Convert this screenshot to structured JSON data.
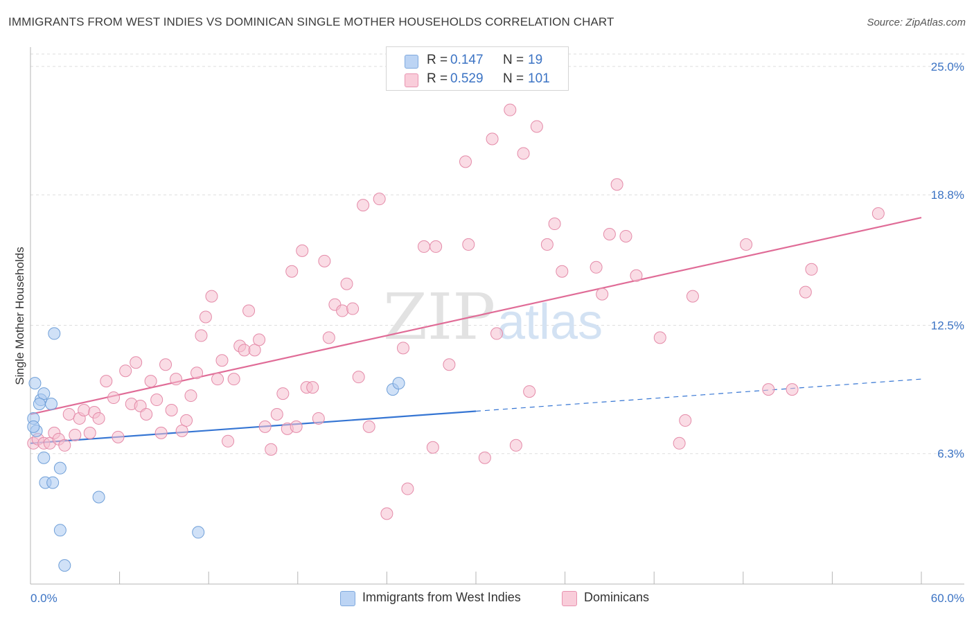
{
  "header": {
    "title": "IMMIGRANTS FROM WEST INDIES VS DOMINICAN SINGLE MOTHER HOUSEHOLDS CORRELATION CHART",
    "source": "Source: ZipAtlas.com"
  },
  "watermark": {
    "zip": "ZIP",
    "atlas": "atlas"
  },
  "legend_top": {
    "rows": [
      {
        "r_label": "R =",
        "r_value": "0.147",
        "n_label": "N =",
        "n_value": "19"
      },
      {
        "r_label": "R =",
        "r_value": "0.529",
        "n_label": "N =",
        "n_value": "101"
      }
    ]
  },
  "legend_bottom": {
    "items": [
      {
        "label": "Immigrants from West Indies"
      },
      {
        "label": "Dominicans"
      }
    ]
  },
  "colors": {
    "blue_fill": "#aac8f0",
    "blue_stroke": "#6f9fd8",
    "blue_line": "#3575d3",
    "pink_fill": "#f6bfd0",
    "pink_stroke": "#e48aa8",
    "pink_line": "#e06c97",
    "axis_label": "#3b73c4",
    "grid": "#dddddd"
  },
  "chart_data": {
    "type": "scatter",
    "title": "IMMIGRANTS FROM WEST INDIES VS DOMINICAN SINGLE MOTHER HOUSEHOLDS CORRELATION CHART",
    "xlabel": "",
    "ylabel": "Single Mother Households",
    "xlim": [
      0,
      60
    ],
    "ylim": [
      0,
      25.6
    ],
    "x_tick_labels": [
      {
        "value": 0,
        "label": "0.0%"
      },
      {
        "value": 60,
        "label": "60.0%"
      }
    ],
    "y_ticks": [
      {
        "value": 6.3,
        "label": "6.3%"
      },
      {
        "value": 12.5,
        "label": "12.5%"
      },
      {
        "value": 18.8,
        "label": "18.8%"
      },
      {
        "value": 25.0,
        "label": "25.0%"
      }
    ],
    "series": [
      {
        "name": "Immigrants from West Indies",
        "color": "#aac8f0",
        "r": 0.147,
        "n": 19,
        "trend": {
          "x0": 0,
          "y0": 6.8,
          "x1": 30,
          "y1": 8.35,
          "dash_to_x": 60,
          "dash_to_y": 9.9
        },
        "points": [
          [
            0.3,
            9.7
          ],
          [
            0.7,
            8.9
          ],
          [
            0.9,
            9.2
          ],
          [
            0.6,
            8.7
          ],
          [
            1.4,
            8.7
          ],
          [
            0.2,
            8.0
          ],
          [
            0.4,
            7.4
          ],
          [
            0.2,
            7.6
          ],
          [
            1.6,
            12.1
          ],
          [
            0.9,
            6.1
          ],
          [
            2.0,
            5.6
          ],
          [
            1.0,
            4.9
          ],
          [
            1.5,
            4.9
          ],
          [
            4.6,
            4.2
          ],
          [
            2.0,
            2.6
          ],
          [
            11.3,
            2.5
          ],
          [
            2.3,
            0.9
          ],
          [
            24.4,
            9.4
          ],
          [
            24.8,
            9.7
          ]
        ]
      },
      {
        "name": "Dominicans",
        "color": "#f6bfd0",
        "r": 0.529,
        "n": 101,
        "trend": {
          "x0": 0,
          "y0": 8.2,
          "x1": 60,
          "y1": 17.7
        },
        "points": [
          [
            0.2,
            6.8
          ],
          [
            0.5,
            7.0
          ],
          [
            0.9,
            6.8
          ],
          [
            1.3,
            6.8
          ],
          [
            1.6,
            7.3
          ],
          [
            1.9,
            7.0
          ],
          [
            2.3,
            6.7
          ],
          [
            2.6,
            8.2
          ],
          [
            3.0,
            7.2
          ],
          [
            3.3,
            8.0
          ],
          [
            3.6,
            8.4
          ],
          [
            4.0,
            7.3
          ],
          [
            4.3,
            8.3
          ],
          [
            4.6,
            8.0
          ],
          [
            5.1,
            9.8
          ],
          [
            5.6,
            9.0
          ],
          [
            5.9,
            7.1
          ],
          [
            6.4,
            10.3
          ],
          [
            6.8,
            8.7
          ],
          [
            7.1,
            10.7
          ],
          [
            7.4,
            8.6
          ],
          [
            7.8,
            8.2
          ],
          [
            8.1,
            9.8
          ],
          [
            8.5,
            8.9
          ],
          [
            8.8,
            7.3
          ],
          [
            9.1,
            10.6
          ],
          [
            9.5,
            8.4
          ],
          [
            9.8,
            9.9
          ],
          [
            10.2,
            7.4
          ],
          [
            10.5,
            7.9
          ],
          [
            10.8,
            9.1
          ],
          [
            11.2,
            10.2
          ],
          [
            11.5,
            12.0
          ],
          [
            11.8,
            12.9
          ],
          [
            12.2,
            13.9
          ],
          [
            12.6,
            9.9
          ],
          [
            12.9,
            10.8
          ],
          [
            13.3,
            6.9
          ],
          [
            13.7,
            9.9
          ],
          [
            14.1,
            11.5
          ],
          [
            14.4,
            11.3
          ],
          [
            14.7,
            13.2
          ],
          [
            15.1,
            11.3
          ],
          [
            15.4,
            11.8
          ],
          [
            15.8,
            7.6
          ],
          [
            16.2,
            6.5
          ],
          [
            16.6,
            8.2
          ],
          [
            17.0,
            9.2
          ],
          [
            17.3,
            7.5
          ],
          [
            17.6,
            15.1
          ],
          [
            17.9,
            7.6
          ],
          [
            18.3,
            16.1
          ],
          [
            18.6,
            9.5
          ],
          [
            19.0,
            9.5
          ],
          [
            19.4,
            8.0
          ],
          [
            19.8,
            15.6
          ],
          [
            20.1,
            11.9
          ],
          [
            20.5,
            13.5
          ],
          [
            21.0,
            13.2
          ],
          [
            21.3,
            14.5
          ],
          [
            21.7,
            13.3
          ],
          [
            22.1,
            10.0
          ],
          [
            22.4,
            18.3
          ],
          [
            22.8,
            7.6
          ],
          [
            23.5,
            18.6
          ],
          [
            24.0,
            3.4
          ],
          [
            25.1,
            11.4
          ],
          [
            25.4,
            4.6
          ],
          [
            26.5,
            16.3
          ],
          [
            27.1,
            6.6
          ],
          [
            27.3,
            16.3
          ],
          [
            28.2,
            10.6
          ],
          [
            29.3,
            20.4
          ],
          [
            29.5,
            16.4
          ],
          [
            30.6,
            6.1
          ],
          [
            31.1,
            21.5
          ],
          [
            31.4,
            12.1
          ],
          [
            32.3,
            22.9
          ],
          [
            32.7,
            6.7
          ],
          [
            33.2,
            20.8
          ],
          [
            33.6,
            9.3
          ],
          [
            34.1,
            22.1
          ],
          [
            34.8,
            16.4
          ],
          [
            35.3,
            17.4
          ],
          [
            35.8,
            15.1
          ],
          [
            38.1,
            15.3
          ],
          [
            38.5,
            14.0
          ],
          [
            39.0,
            16.9
          ],
          [
            39.5,
            19.3
          ],
          [
            40.1,
            16.8
          ],
          [
            40.8,
            14.9
          ],
          [
            42.4,
            11.9
          ],
          [
            43.7,
            6.8
          ],
          [
            44.1,
            7.9
          ],
          [
            44.6,
            13.9
          ],
          [
            48.2,
            16.4
          ],
          [
            49.7,
            9.4
          ],
          [
            51.3,
            9.4
          ],
          [
            52.2,
            14.1
          ],
          [
            52.6,
            15.2
          ],
          [
            57.1,
            17.9
          ]
        ]
      }
    ]
  }
}
